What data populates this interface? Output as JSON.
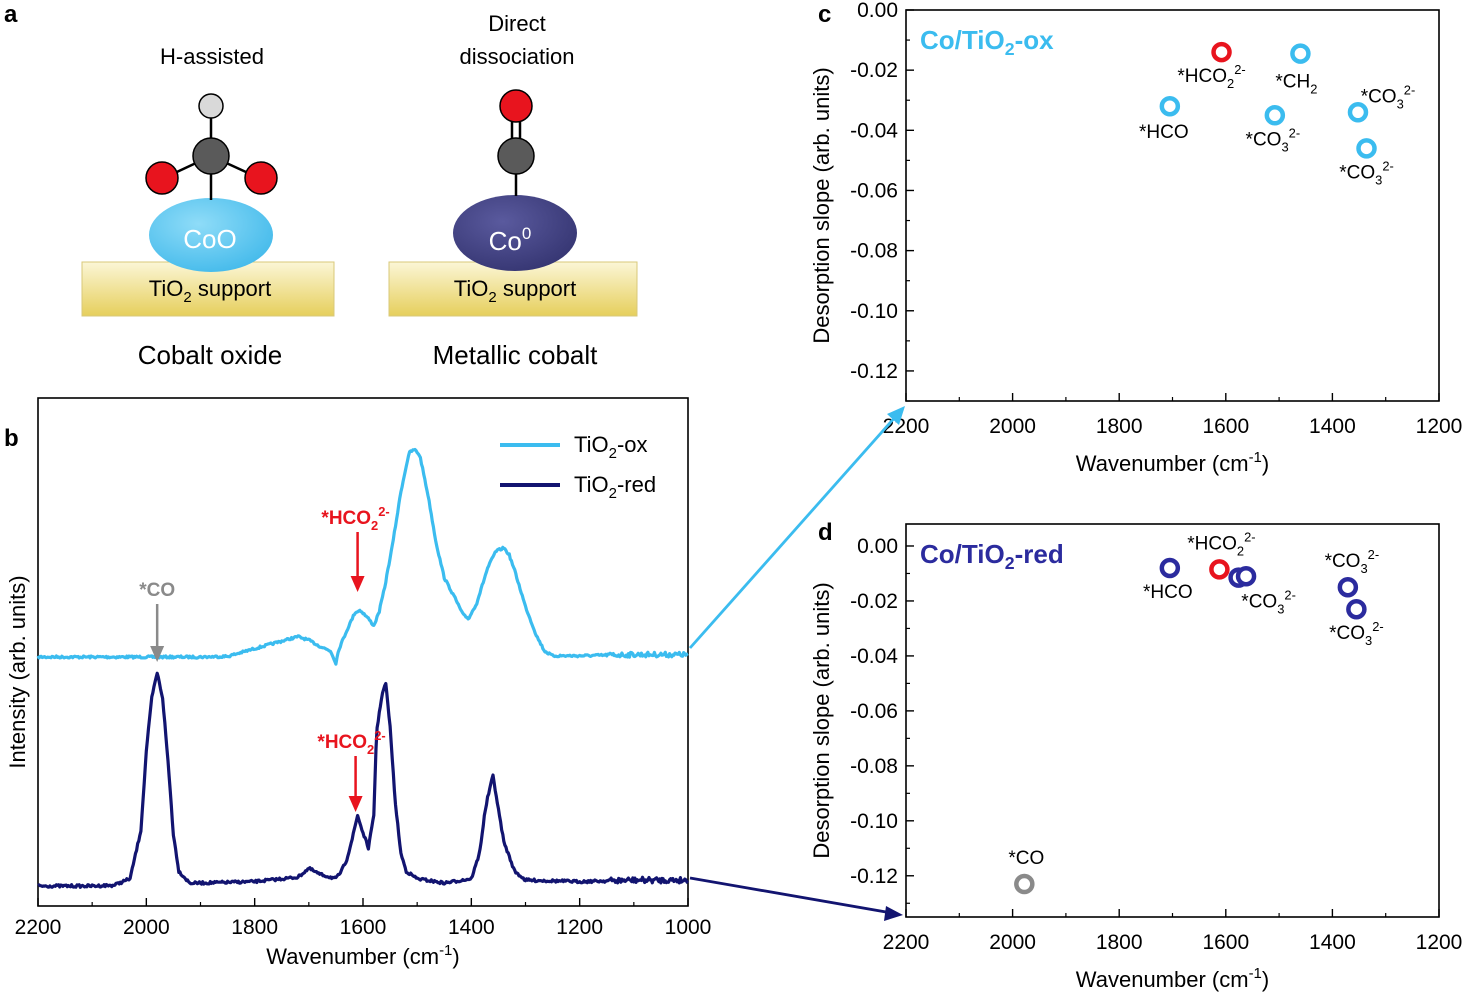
{
  "panels": {
    "a": "a",
    "b": "b",
    "c": "c",
    "d": "d"
  },
  "schematic": {
    "left": {
      "mechanism": "H-assisted",
      "particle": "CoO",
      "support": "TiO2 support",
      "caption": "Cobalt oxide"
    },
    "right": {
      "mechanism_line1": "Direct",
      "mechanism_line2": "dissociation",
      "particle": "Co0",
      "support": "TiO2 support",
      "caption": "Metallic cobalt"
    }
  },
  "colors": {
    "light_blue": "#3bbcef",
    "navy": "#121470",
    "purple_blue": "#2b2b9e",
    "red": "#e8141e",
    "gray": "#8a8a8a",
    "atom_gray": "#5a5a5a",
    "atom_white": "#d9d9d9",
    "atom_red": "#e8141e",
    "coo": "#5bc8f0",
    "co0": "#3e3d80"
  },
  "chart_data": [
    {
      "panel": "b",
      "type": "line",
      "xlabel": "Wavenumber (cm-1)",
      "ylabel": "Intensity (arb. units)",
      "xlim": [
        2200,
        1000
      ],
      "xticks": [
        2200,
        2000,
        1800,
        1600,
        1400,
        1200,
        1000
      ],
      "legend": "top-right",
      "series": [
        {
          "name": "TiO2-ox",
          "x": [
            2200,
            2100,
            2000,
            1980,
            1900,
            1850,
            1800,
            1760,
            1720,
            1700,
            1680,
            1660,
            1650,
            1645,
            1630,
            1615,
            1605,
            1590,
            1580,
            1570,
            1560,
            1545,
            1530,
            1515,
            1505,
            1495,
            1480,
            1465,
            1450,
            1430,
            1415,
            1405,
            1390,
            1370,
            1355,
            1340,
            1330,
            1320,
            1300,
            1280,
            1265,
            1250,
            1200,
            1100,
            1000
          ],
          "y": [
            0,
            0,
            0,
            0,
            0,
            0.005,
            0.07,
            0.12,
            0.17,
            0.14,
            0.09,
            0.05,
            -0.05,
            0.06,
            0.22,
            0.37,
            0.39,
            0.32,
            0.26,
            0.38,
            0.58,
            0.95,
            1.38,
            1.7,
            1.73,
            1.68,
            1.35,
            0.95,
            0.66,
            0.49,
            0.35,
            0.32,
            0.45,
            0.74,
            0.88,
            0.91,
            0.85,
            0.72,
            0.42,
            0.18,
            0.05,
            0.01,
            0.01,
            0.02,
            0.02
          ]
        },
        {
          "name": "TiO2-red",
          "x": [
            2200,
            2100,
            2060,
            2030,
            2010,
            2000,
            1990,
            1980,
            1970,
            1960,
            1950,
            1940,
            1920,
            1900,
            1800,
            1720,
            1700,
            1680,
            1650,
            1640,
            1630,
            1620,
            1610,
            1600,
            1590,
            1580,
            1575,
            1565,
            1558,
            1550,
            1540,
            1530,
            1520,
            1500,
            1450,
            1400,
            1385,
            1375,
            1370,
            1360,
            1350,
            1340,
            1320,
            1300,
            1200,
            1100,
            1000
          ],
          "y": [
            0,
            0,
            0.005,
            0.05,
            0.38,
            0.92,
            1.28,
            1.45,
            1.28,
            0.85,
            0.35,
            0.1,
            0.02,
            0.02,
            0.03,
            0.06,
            0.12,
            0.08,
            0.05,
            0.1,
            0.18,
            0.32,
            0.48,
            0.36,
            0.26,
            0.48,
            1.05,
            1.3,
            1.38,
            1.08,
            0.55,
            0.22,
            0.1,
            0.05,
            0.02,
            0.05,
            0.22,
            0.5,
            0.6,
            0.75,
            0.52,
            0.3,
            0.1,
            0.04,
            0.03,
            0.04,
            0.04
          ]
        }
      ],
      "annotations": [
        {
          "text": "*CO",
          "x": 1980,
          "series": "TiO2-red"
        },
        {
          "text": "*HCO2 2-",
          "x": 1610,
          "series": "TiO2-ox"
        },
        {
          "text": "*HCO2 2-",
          "x": 1610,
          "series": "TiO2-red"
        }
      ]
    },
    {
      "panel": "c",
      "type": "scatter",
      "title": "Co/TiO2-ox",
      "xlabel": "Wavenumber (cm-1)",
      "ylabel": "Desorption slope (arb. units)",
      "xlim": [
        2200,
        1200
      ],
      "ylim": [
        -0.13,
        0.0
      ],
      "xticks": [
        2200,
        2000,
        1800,
        1600,
        1400,
        1200
      ],
      "yticks": [
        0.0,
        -0.02,
        -0.04,
        -0.06,
        -0.08,
        -0.1,
        -0.12
      ],
      "points": [
        {
          "x": 1608,
          "y": -0.014,
          "label": "*HCO2 2-",
          "color": "red"
        },
        {
          "x": 1460,
          "y": -0.0145,
          "label": "*CH2",
          "color": "light_blue"
        },
        {
          "x": 1705,
          "y": -0.032,
          "label": "*HCO",
          "color": "light_blue"
        },
        {
          "x": 1508,
          "y": -0.035,
          "label": "*CO3 2-",
          "color": "light_blue"
        },
        {
          "x": 1352,
          "y": -0.034,
          "label": "*CO3 2-",
          "color": "light_blue"
        },
        {
          "x": 1336,
          "y": -0.046,
          "label": "*CO3 2-",
          "color": "light_blue"
        }
      ]
    },
    {
      "panel": "d",
      "type": "scatter",
      "title": "Co/TiO2-red",
      "xlabel": "Wavenumber (cm-1)",
      "ylabel": "Desorption slope (arb. units)",
      "xlim": [
        2200,
        1200
      ],
      "ylim": [
        -0.135,
        0.008
      ],
      "xticks": [
        2200,
        2000,
        1800,
        1600,
        1400,
        1200
      ],
      "yticks": [
        0.0,
        -0.02,
        -0.04,
        -0.06,
        -0.08,
        -0.1,
        -0.12
      ],
      "points": [
        {
          "x": 1705,
          "y": -0.008,
          "label": "*HCO",
          "color": "purple_blue"
        },
        {
          "x": 1612,
          "y": -0.0085,
          "label": "*HCO2 2-",
          "color": "red"
        },
        {
          "x": 1576,
          "y": -0.0115,
          "label": "*CO3 2-",
          "color": "purple_blue"
        },
        {
          "x": 1562,
          "y": -0.011,
          "label": "",
          "color": "purple_blue"
        },
        {
          "x": 1371,
          "y": -0.015,
          "label": "*CO3 2-",
          "color": "purple_blue"
        },
        {
          "x": 1355,
          "y": -0.023,
          "label": "*CO3 2-",
          "color": "purple_blue"
        },
        {
          "x": 1978,
          "y": -0.123,
          "label": "*CO",
          "color": "gray"
        }
      ]
    }
  ]
}
